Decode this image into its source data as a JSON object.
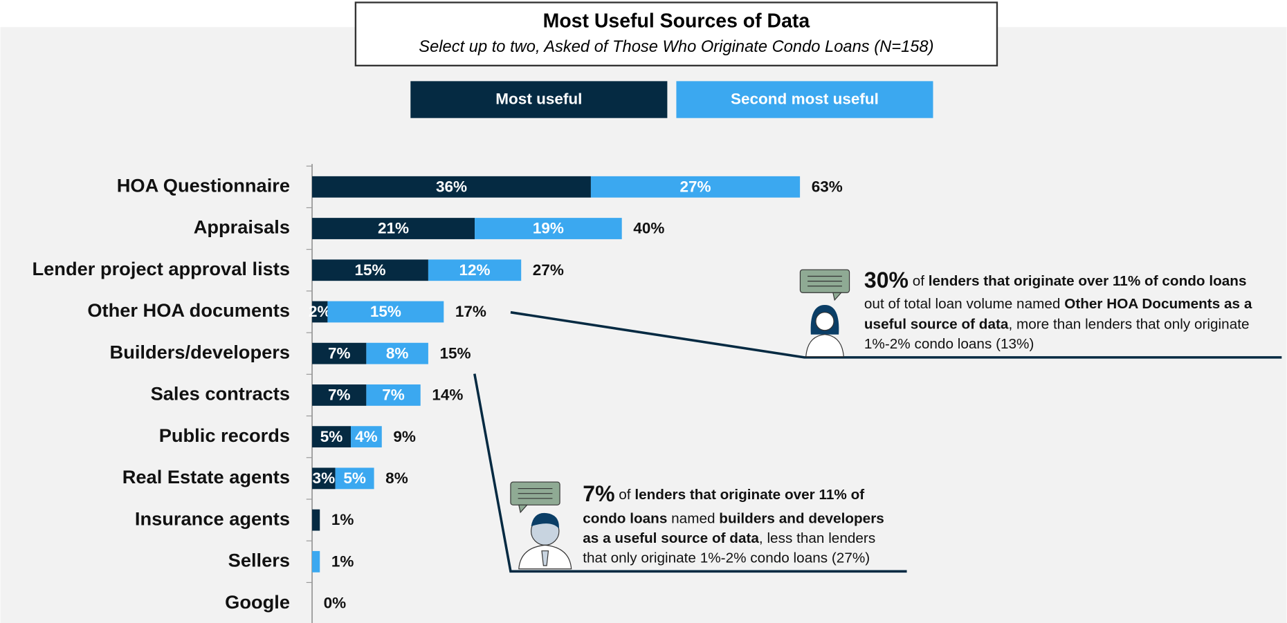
{
  "chart_data": {
    "type": "stacked-bar",
    "title": "Most Useful Sources of Data",
    "subtitle": "Select up to two, Asked of Those Who Originate Condo Loans (N=158)",
    "categories": [
      "HOA Questionnaire",
      "Appraisals",
      "Lender project approval lists",
      "Other HOA documents",
      "Builders/developers",
      "Sales contracts",
      "Public records",
      "Real Estate agents",
      "Insurance agents",
      "Sellers",
      "Google"
    ],
    "series": [
      {
        "name": "Most useful",
        "color": "#052a42",
        "values": [
          36,
          21,
          15,
          2,
          7,
          7,
          5,
          3,
          1,
          0,
          0
        ],
        "value_labels": [
          "36%",
          "21%",
          "15%",
          "2%",
          "7%",
          "7%",
          "5%",
          "3%",
          null,
          null,
          null
        ]
      },
      {
        "name": "Second most useful",
        "color": "#3ba8f0",
        "values": [
          27,
          19,
          12,
          15,
          8,
          7,
          4,
          5,
          0,
          1,
          0
        ],
        "value_labels": [
          "27%",
          "19%",
          "12%",
          "15%",
          "8%",
          "7%",
          "4%",
          "5%",
          null,
          null,
          null
        ]
      }
    ],
    "totals": [
      63,
      40,
      27,
      17,
      15,
      14,
      9,
      8,
      1,
      1,
      0
    ],
    "total_labels": [
      "63%",
      "40%",
      "27%",
      "17%",
      "15%",
      "14%",
      "9%",
      "8%",
      "1%",
      "1%",
      "0%"
    ],
    "annotations": [
      {
        "lines": [
          [
            {
              "text": "30%",
              "style": "big"
            },
            {
              "text": " of ",
              "style": "normal"
            },
            {
              "text": "lenders that originate over 11% of condo loans",
              "style": "bold"
            }
          ],
          [
            {
              "text": "out of total loan volume named ",
              "style": "normal"
            },
            {
              "text": "Other HOA Documents as a",
              "style": "bold"
            }
          ],
          [
            {
              "text": "useful source of data",
              "style": "bold"
            },
            {
              "text": ", more than lenders that only originate",
              "style": "normal"
            }
          ],
          [
            {
              "text": "1%-2% condo loans (13%)",
              "style": "normal"
            }
          ]
        ]
      },
      {
        "lines": [
          [
            {
              "text": "7%",
              "style": "big"
            },
            {
              "text": " of ",
              "style": "normal"
            },
            {
              "text": "lenders that originate over 11% of",
              "style": "bold"
            }
          ],
          [
            {
              "text": "condo loans",
              "style": "bold"
            },
            {
              "text": " named ",
              "style": "normal"
            },
            {
              "text": "builders and developers",
              "style": "bold"
            }
          ],
          [
            {
              "text": "as a useful source of data",
              "style": "bold"
            },
            {
              "text": ", less than lenders",
              "style": "normal"
            }
          ],
          [
            {
              "text": "that only originate 1%-2% condo loans (27%)",
              "style": "normal"
            }
          ]
        ]
      }
    ]
  }
}
